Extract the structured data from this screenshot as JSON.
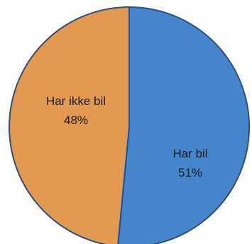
{
  "chart_data": {
    "type": "pie",
    "slices": [
      {
        "label": "Har bil",
        "value": 51,
        "value_label": "51%",
        "color": "#4585CC"
      },
      {
        "label": "Har ikke bil",
        "value": 48,
        "value_label": "48%",
        "color": "#E3994F"
      }
    ],
    "border_color": "#26508A",
    "start_angle_deg": 0,
    "direction": "clockwise"
  }
}
